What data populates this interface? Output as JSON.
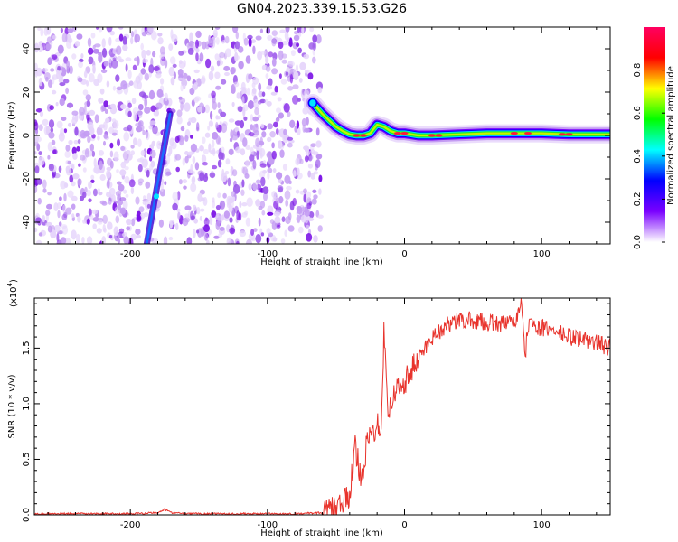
{
  "figure": {
    "title": "GN04.2023.339.15.53.G26"
  },
  "chart_data": [
    {
      "type": "heatmap",
      "title": "GN04.2023.339.15.53.G26",
      "xlabel": "Height of straight line (km)",
      "ylabel": "Frequency (Hz)",
      "xlim": [
        -270,
        150
      ],
      "ylim": [
        -50,
        50
      ],
      "xticks": [
        -200,
        -100,
        0,
        100
      ],
      "yticks": [
        -40,
        -20,
        0,
        20,
        40
      ],
      "noise_region": [
        -270,
        -65
      ],
      "streak": {
        "x": [
          -188,
          -171
        ],
        "y": [
          -50,
          10
        ]
      },
      "ridge": {
        "x": [
          -67,
          -60,
          -55,
          -50,
          -45,
          -40,
          -35,
          -30,
          -25,
          -20,
          -15,
          -10,
          -5,
          0,
          10,
          20,
          40,
          60,
          80,
          100,
          120,
          150
        ],
        "y": [
          15,
          10,
          7,
          4,
          2,
          0.5,
          0,
          0,
          1,
          5,
          4,
          2,
          1,
          1,
          0,
          0,
          0.5,
          1,
          1,
          1,
          0.5,
          0.5
        ]
      },
      "colorbar": {
        "label": "Normalized spectral amplitude",
        "ticks": [
          0.0,
          0.2,
          0.4,
          0.6,
          0.8
        ],
        "range": [
          0,
          1
        ],
        "colors": [
          "#ffffff",
          "#7a00ff",
          "#0000ff",
          "#00ffff",
          "#00ff00",
          "#ffff00",
          "#ff0000",
          "#ff0060"
        ]
      }
    },
    {
      "type": "line",
      "xlabel": "Height of straight line (km)",
      "ylabel": "SNR (10 * v/v)",
      "multiplier": "(x10",
      "multiplier_exp": "4",
      "multiplier_close": ")",
      "xlim": [
        -270,
        150
      ],
      "ylim": [
        0,
        1.95
      ],
      "xticks": [
        -200,
        -100,
        0,
        100
      ],
      "yticks": [
        0.0,
        0.5,
        1.0,
        1.5
      ],
      "series": [
        {
          "color": "#e8332c",
          "x": [
            -270,
            -250,
            -220,
            -200,
            -180,
            -175,
            -170,
            -150,
            -120,
            -100,
            -80,
            -60,
            -50,
            -45,
            -40,
            -38,
            -36,
            -34,
            -32,
            -30,
            -28,
            -25,
            -22,
            -20,
            -17,
            -15,
            -12,
            -10,
            -5,
            0,
            5,
            10,
            15,
            20,
            25,
            30,
            35,
            40,
            50,
            60,
            70,
            80,
            85,
            88,
            90,
            95,
            100,
            110,
            120,
            130,
            140,
            150
          ],
          "y": [
            0.01,
            0.01,
            0.01,
            0.01,
            0.02,
            0.05,
            0.02,
            0.01,
            0.01,
            0.01,
            0.01,
            0.02,
            0.05,
            0.1,
            0.18,
            0.4,
            0.6,
            0.5,
            0.35,
            0.45,
            0.6,
            0.72,
            0.75,
            0.85,
            0.8,
            1.65,
            0.95,
            1.0,
            1.15,
            1.2,
            1.3,
            1.4,
            1.5,
            1.6,
            1.65,
            1.7,
            1.72,
            1.75,
            1.75,
            1.73,
            1.72,
            1.72,
            1.9,
            1.4,
            1.72,
            1.7,
            1.68,
            1.65,
            1.6,
            1.58,
            1.55,
            1.5
          ]
        }
      ]
    }
  ]
}
